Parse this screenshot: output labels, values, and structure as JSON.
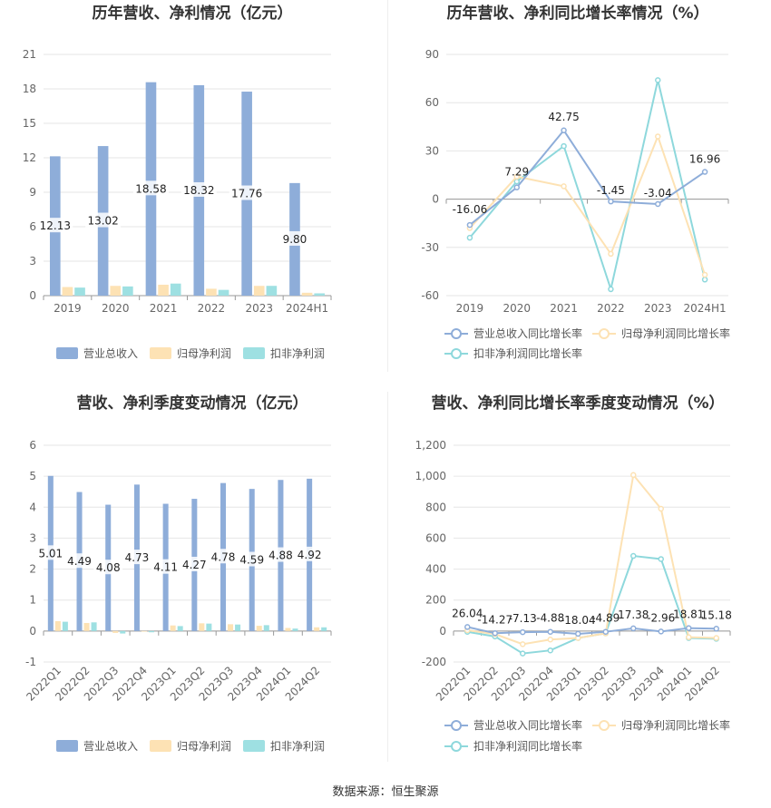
{
  "colors": {
    "revenue": "#8eadd9",
    "parent_profit": "#fde2b4",
    "deducted_profit": "#9ee0e2",
    "growth_revenue": "#8eadd9",
    "growth_parent": "#fde2b4",
    "growth_deducted": "#8ed8dc"
  },
  "source": "数据来源：恒生聚源",
  "chart_data": [
    {
      "type": "bar",
      "title": "历年营收、净利情况（亿元）",
      "categories": [
        "2019",
        "2020",
        "2021",
        "2022",
        "2023",
        "2024H1"
      ],
      "ylim": [
        0,
        21
      ],
      "yticks": [
        0,
        3,
        6,
        9,
        12,
        15,
        18,
        21
      ],
      "grid": true,
      "legend": "bottom",
      "series": [
        {
          "name": "营业总收入",
          "values": [
            12.13,
            13.02,
            18.58,
            18.32,
            17.76,
            9.8
          ],
          "labels": [
            "12.13",
            "13.02",
            "18.58",
            "18.32",
            "17.76",
            "9.80"
          ]
        },
        {
          "name": "归母净利润",
          "values": [
            0.75,
            0.85,
            0.95,
            0.6,
            0.85,
            0.25
          ]
        },
        {
          "name": "扣非净利润",
          "values": [
            0.7,
            0.8,
            1.05,
            0.5,
            0.85,
            0.2
          ]
        }
      ]
    },
    {
      "type": "line",
      "title": "历年营收、净利同比增长率情况（%）",
      "categories": [
        "2019",
        "2020",
        "2021",
        "2022",
        "2023",
        "2024H1"
      ],
      "ylim": [
        -60,
        90
      ],
      "yticks": [
        -60,
        -30,
        0,
        30,
        60,
        90
      ],
      "grid": true,
      "legend": "bottom",
      "series": [
        {
          "name": "营业总收入同比增长率",
          "values": [
            -16.06,
            7.29,
            42.75,
            -1.45,
            -3.04,
            16.96
          ],
          "labels": [
            "-16.06",
            "7.29",
            "42.75",
            "-1.45",
            "-3.04",
            "16.96"
          ]
        },
        {
          "name": "归母净利润同比增长率",
          "values": [
            -18,
            14,
            8,
            -34,
            39,
            -47
          ]
        },
        {
          "name": "扣非净利润同比增长率",
          "values": [
            -24,
            11,
            33,
            -56,
            74,
            -50
          ]
        }
      ]
    },
    {
      "type": "bar",
      "title": "营收、净利季度变动情况（亿元）",
      "categories": [
        "2022Q1",
        "2022Q2",
        "2022Q3",
        "2022Q4",
        "2023Q1",
        "2023Q2",
        "2023Q3",
        "2023Q4",
        "2024Q1",
        "2024Q2"
      ],
      "ylim": [
        -1,
        6
      ],
      "yticks": [
        -1,
        0,
        1,
        2,
        3,
        4,
        5,
        6
      ],
      "grid": true,
      "legend": "bottom",
      "series": [
        {
          "name": "营业总收入",
          "values": [
            5.01,
            4.49,
            4.08,
            4.73,
            4.11,
            4.27,
            4.78,
            4.59,
            4.88,
            4.92
          ],
          "labels": [
            "5.01",
            "4.49",
            "4.08",
            "4.73",
            "4.11",
            "4.27",
            "4.78",
            "4.59",
            "4.88",
            "4.92"
          ]
        },
        {
          "name": "归母净利润",
          "values": [
            0.32,
            0.26,
            -0.06,
            -0.02,
            0.18,
            0.25,
            0.22,
            0.17,
            0.1,
            0.12
          ]
        },
        {
          "name": "扣非净利润",
          "values": [
            0.3,
            0.28,
            -0.08,
            -0.04,
            0.16,
            0.24,
            0.21,
            0.19,
            0.08,
            0.12
          ]
        }
      ]
    },
    {
      "type": "line",
      "title": "营收、净利同比增长率季度变动情况（%）",
      "categories": [
        "2022Q1",
        "2022Q2",
        "2022Q3",
        "2022Q4",
        "2023Q1",
        "2023Q2",
        "2023Q3",
        "2023Q4",
        "2024Q1",
        "2024Q2"
      ],
      "ylim": [
        -200,
        1200
      ],
      "yticks": [
        -200,
        0,
        200,
        400,
        600,
        800,
        1000,
        1200
      ],
      "ytick_labels": [
        "-200",
        "0",
        "200",
        "400",
        "600",
        "800",
        "1,000",
        "1,200"
      ],
      "grid": true,
      "legend": "bottom",
      "series": [
        {
          "name": "营业总收入同比增长率",
          "values": [
            26.04,
            -14.27,
            -7.13,
            -4.88,
            -18.04,
            -4.89,
            17.38,
            -2.96,
            18.81,
            15.18
          ],
          "labels": [
            "26.04",
            "-14.27",
            "-7.13",
            "-4.88",
            "-18.04",
            "-4.89",
            "17.38",
            "-2.96",
            "18.81",
            "15.18"
          ]
        },
        {
          "name": "归母净利润同比增长率",
          "values": [
            5,
            -20,
            -85,
            -55,
            -45,
            -15,
            1008,
            790,
            -40,
            -45
          ]
        },
        {
          "name": "扣非净利润同比增长率",
          "values": [
            -5,
            -35,
            -145,
            -125,
            -45,
            -15,
            485,
            465,
            -45,
            -50
          ]
        }
      ]
    }
  ]
}
